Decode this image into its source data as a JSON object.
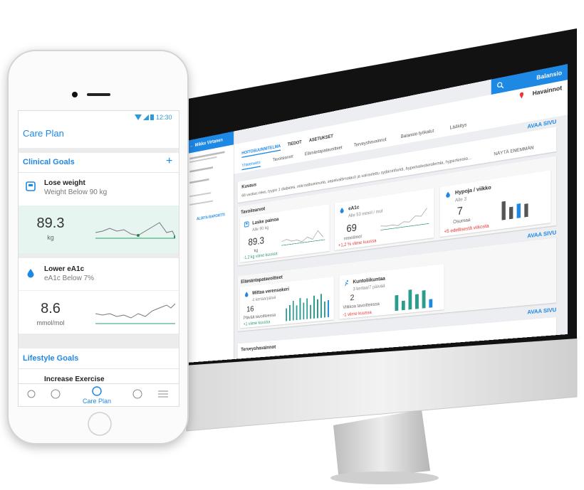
{
  "phone": {
    "status_time": "12:30",
    "title": "Care Plan",
    "clinical_goals": {
      "heading": "Clinical Goals",
      "add": "+",
      "goals": [
        {
          "name": "Lose weight",
          "target": "Weight Below 90 kg",
          "value": "89.3",
          "unit": "kg"
        },
        {
          "name": "Lower eA1c",
          "target": "eA1c Below 7%",
          "value": "8.6",
          "unit": "mmol/mol"
        }
      ]
    },
    "lifestyle_goals": {
      "heading": "Lifestyle Goals",
      "goals": [
        {
          "name": "Increase Exercise"
        }
      ]
    },
    "nav": {
      "active": "Care Plan"
    }
  },
  "monitor": {
    "brand": "Balansio",
    "observations": "Havainnot",
    "patient": "Mikko Virtanen",
    "start_report": "ALOITA RAPORTTI",
    "tabs": [
      "HOITOSUUNNITELMA",
      "TIEDOT",
      "ASETUKSET"
    ],
    "subtabs": [
      "Yhteenveto",
      "Tavoitearvot",
      "Elämäntapatavoitteet",
      "Terveyshavainnot",
      "Balansio työkalut",
      "Lääkitys"
    ],
    "open_page": "AVAA SIVU",
    "description": {
      "heading": "Kuvaus",
      "text": "68 vuotias mies, tyypin 1 diabetes, mikroalbuminuria, sepelvaltimotauti ja sairastettu sydäninfarkti, hyperkolesterolemia, hypertensio...",
      "more": "NÄYTÄ ENEMMÄN"
    },
    "targets": {
      "heading": "Tavoitearvot",
      "cards": [
        {
          "name": "Laske painoa",
          "target": "Alle 90 kg",
          "value": "89.3",
          "unit": "kg",
          "change": "-1,2 kg viime kuussa"
        },
        {
          "name": "eA1c",
          "target": "Alle 53 mmol / mol",
          "value": "69",
          "unit": "mmol/mol",
          "change": "+1,2 % viime kuussa"
        },
        {
          "name": "Hypoja / viikko",
          "target": "Alle 3",
          "value": "7",
          "unit": "Osumaa",
          "change": "+5 edellisestä viikosta"
        }
      ]
    },
    "lifestyle": {
      "heading": "Elämäntapatavoitteet",
      "cards": [
        {
          "name": "Mittaa verensokeri",
          "target": "4 kertaa/päivä",
          "value": "16",
          "unit": "Päivää tavoitteessa",
          "change": "+1 viime kuussa"
        },
        {
          "name": "Kuntoliikuntaa",
          "target": "3 kertaa/7 päivää",
          "value": "2",
          "unit": "Viikkoa tavoitteessa",
          "change": "-1 viime kuussa"
        }
      ]
    },
    "health": {
      "heading": "Terveyshavainnot"
    }
  }
}
